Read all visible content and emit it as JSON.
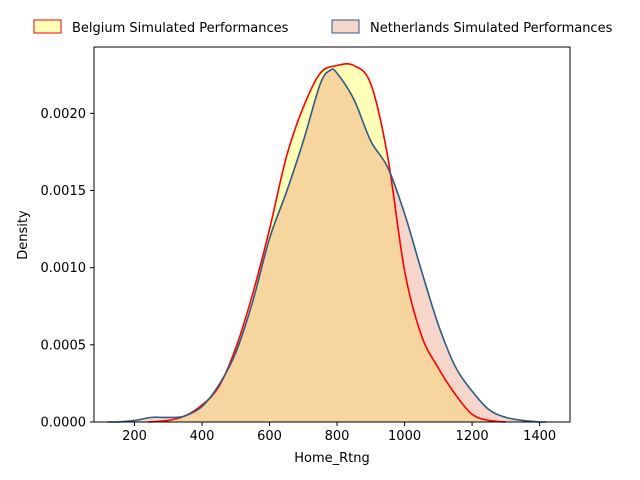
{
  "chart_data": {
    "type": "area",
    "xlabel": "Home_Rtng",
    "ylabel": "Density",
    "xlim": [
      80,
      1490
    ],
    "ylim": [
      0,
      0.00243
    ],
    "x_ticks": [
      200,
      400,
      600,
      800,
      1000,
      1200,
      1400
    ],
    "x_tick_labels": [
      "200",
      "400",
      "600",
      "800",
      "1000",
      "1200",
      "1400"
    ],
    "y_ticks": [
      0,
      0.0005,
      0.001,
      0.0015,
      0.002
    ],
    "y_tick_labels": [
      "0.0000",
      "0.0005",
      "0.0010",
      "0.0015",
      "0.0020"
    ],
    "grid": false,
    "legend_position": "top",
    "series": [
      {
        "name": "Belgium Simulated Performances",
        "fill_color": "#ffff99",
        "fill_opacity": 0.7,
        "line_color": "#ff0000",
        "x": [
          240,
          300,
          350,
          400,
          450,
          500,
          550,
          600,
          650,
          700,
          750,
          800,
          850,
          900,
          950,
          1000,
          1050,
          1100,
          1150,
          1200,
          1250,
          1300
        ],
        "y": [
          0.0,
          1e-05,
          4e-05,
          0.00011,
          0.00023,
          0.00048,
          0.00083,
          0.00125,
          0.00172,
          0.00204,
          0.00226,
          0.00231,
          0.00231,
          0.00219,
          0.00172,
          0.00098,
          0.00056,
          0.00035,
          0.00018,
          5e-05,
          1e-05,
          0.0
        ]
      },
      {
        "name": "Netherlands Simulated Performances",
        "fill_color": "#e9967a",
        "fill_opacity": 0.4,
        "line_color": "#2f5c85",
        "x": [
          120,
          150,
          200,
          250,
          280,
          320,
          350,
          400,
          450,
          500,
          550,
          600,
          650,
          700,
          750,
          780,
          800,
          850,
          900,
          950,
          1000,
          1050,
          1100,
          1150,
          1200,
          1250,
          1300,
          1350,
          1400,
          1420
        ],
        "y": [
          0.0,
          0.0,
          1e-05,
          3e-05,
          3e-05,
          3e-05,
          4e-05,
          0.0001,
          0.00024,
          0.00045,
          0.00078,
          0.00119,
          0.00149,
          0.00182,
          0.00219,
          0.00228,
          0.00226,
          0.00209,
          0.00182,
          0.00165,
          0.00135,
          0.00098,
          0.00063,
          0.00036,
          0.0002,
          8e-05,
          3e-05,
          1e-05,
          0.0,
          0.0
        ]
      }
    ]
  }
}
